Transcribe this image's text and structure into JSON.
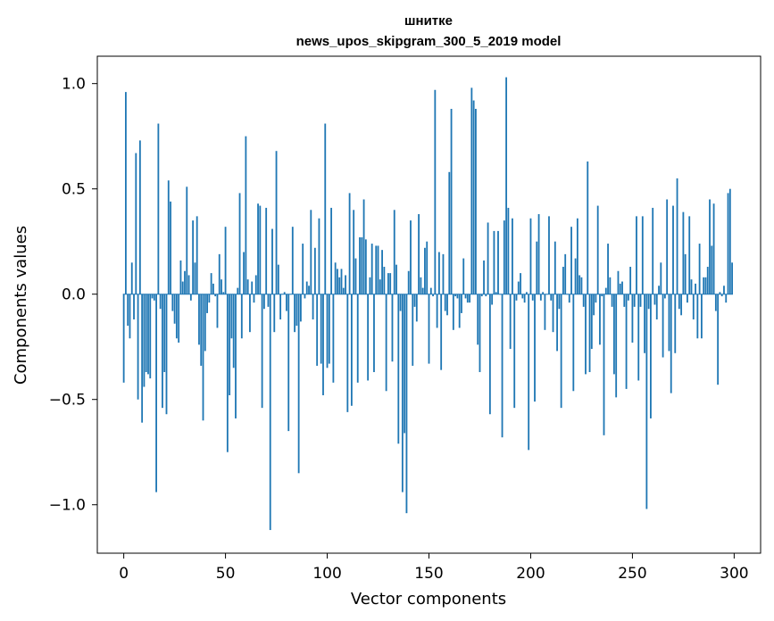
{
  "chart_data": {
    "type": "bar",
    "title": "шнитке",
    "subtitle": "news_upos_skipgram_300_5_2019 model",
    "xlabel": "Vector components",
    "ylabel": "Components values",
    "xlim": [
      -13,
      313
    ],
    "ylim": [
      -1.23,
      1.13
    ],
    "xticks": [
      0,
      50,
      100,
      150,
      200,
      250,
      300
    ],
    "yticks": [
      -1.0,
      -0.5,
      0.0,
      0.5,
      1.0
    ],
    "ytick_labels": [
      "−1.0",
      "−0.5",
      "0.0",
      "0.5",
      "1.0"
    ],
    "bar_color": "#1f77b4",
    "grid": false,
    "values": [
      -0.42,
      0.96,
      -0.15,
      -0.21,
      0.15,
      -0.12,
      0.67,
      -0.5,
      0.73,
      -0.61,
      -0.44,
      -0.37,
      -0.38,
      -0.4,
      -0.02,
      -0.03,
      -0.94,
      0.81,
      -0.07,
      -0.54,
      -0.37,
      -0.57,
      0.54,
      0.44,
      -0.08,
      -0.14,
      -0.21,
      -0.23,
      0.16,
      0.06,
      0.11,
      0.51,
      0.09,
      -0.03,
      0.35,
      0.15,
      0.37,
      -0.24,
      -0.34,
      -0.6,
      -0.27,
      -0.09,
      -0.04,
      0.1,
      0.05,
      -0.01,
      -0.16,
      0.19,
      0.07,
      0.01,
      0.32,
      -0.75,
      -0.48,
      -0.21,
      -0.35,
      -0.59,
      0.03,
      0.48,
      -0.21,
      0.2,
      0.75,
      0.07,
      -0.18,
      0.06,
      -0.04,
      0.09,
      0.43,
      0.42,
      -0.54,
      -0.07,
      0.41,
      -0.06,
      -1.12,
      0.31,
      -0.18,
      0.68,
      0.14,
      -0.12,
      0.0,
      0.01,
      -0.08,
      -0.65,
      0.0,
      0.32,
      -0.18,
      -0.15,
      -0.85,
      -0.13,
      0.24,
      -0.02,
      0.06,
      0.04,
      0.4,
      -0.12,
      0.22,
      -0.34,
      0.36,
      -0.33,
      -0.48,
      0.81,
      -0.35,
      -0.33,
      0.41,
      -0.42,
      0.15,
      0.12,
      0.08,
      0.12,
      0.03,
      0.09,
      -0.56,
      0.48,
      -0.53,
      0.4,
      0.17,
      -0.42,
      0.27,
      0.27,
      0.45,
      0.26,
      -0.41,
      0.08,
      0.24,
      -0.37,
      0.23,
      0.23,
      0.07,
      0.21,
      0.13,
      -0.46,
      0.1,
      0.1,
      -0.32,
      0.4,
      0.14,
      -0.71,
      -0.08,
      -0.94,
      -0.66,
      -1.04,
      0.11,
      0.35,
      -0.34,
      -0.06,
      -0.13,
      0.38,
      0.08,
      0.03,
      0.22,
      0.25,
      -0.33,
      0.03,
      -0.01,
      0.97,
      -0.16,
      0.2,
      -0.36,
      0.19,
      -0.08,
      -0.1,
      0.58,
      0.88,
      -0.17,
      -0.01,
      -0.02,
      -0.16,
      -0.09,
      0.17,
      -0.02,
      -0.04,
      -0.04,
      0.98,
      0.92,
      0.88,
      -0.24,
      -0.37,
      -0.01,
      0.16,
      -0.01,
      0.34,
      -0.57,
      -0.05,
      0.3,
      0.01,
      0.3,
      0.0,
      -0.68,
      0.35,
      1.03,
      0.41,
      -0.26,
      0.36,
      -0.54,
      -0.03,
      0.06,
      0.1,
      -0.02,
      -0.04,
      0.01,
      -0.74,
      0.36,
      -0.03,
      -0.51,
      0.25,
      0.38,
      -0.03,
      0.01,
      -0.17,
      0.0,
      0.37,
      -0.03,
      -0.18,
      0.25,
      -0.27,
      -0.07,
      -0.54,
      0.13,
      0.19,
      0.0,
      -0.04,
      0.32,
      -0.46,
      0.17,
      0.36,
      0.09,
      0.08,
      -0.06,
      -0.38,
      0.63,
      -0.37,
      -0.26,
      -0.1,
      -0.04,
      0.42,
      -0.24,
      -0.01,
      -0.67,
      0.03,
      0.24,
      0.08,
      -0.06,
      -0.38,
      -0.49,
      0.11,
      0.05,
      0.06,
      -0.06,
      -0.45,
      -0.03,
      0.13,
      -0.23,
      -0.06,
      0.37,
      -0.41,
      -0.06,
      0.37,
      -0.28,
      -1.02,
      -0.07,
      -0.59,
      0.41,
      -0.05,
      -0.12,
      0.04,
      0.15,
      -0.3,
      -0.02,
      0.45,
      -0.27,
      -0.47,
      0.42,
      -0.28,
      0.55,
      -0.07,
      -0.1,
      0.39,
      0.19,
      -0.04,
      0.37,
      0.07,
      -0.12,
      0.05,
      -0.21,
      0.24,
      -0.21,
      0.08,
      0.08,
      0.13,
      0.45,
      0.23,
      0.43,
      -0.08,
      -0.43,
      0.01,
      -0.01,
      0.04,
      -0.04,
      0.48,
      0.5,
      0.15
    ]
  }
}
